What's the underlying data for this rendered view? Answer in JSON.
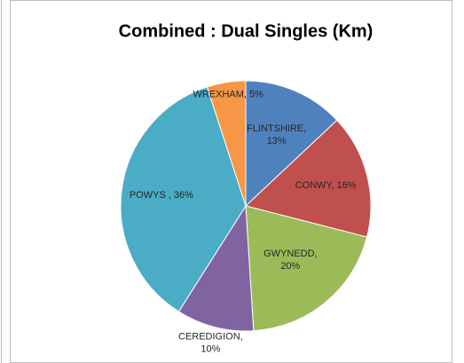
{
  "chart_data": {
    "type": "pie",
    "title": "Combined : Dual Singles (Km)",
    "categories": [
      "FLINTSHIRE,",
      "CONWY,",
      "GWYNEDD,",
      "CEREDIGION,",
      "POWYS ,",
      "WREXHAM,"
    ],
    "values": [
      13,
      16,
      20,
      10,
      36,
      5
    ],
    "value_labels": [
      "13%",
      "16%",
      "20%",
      "10%",
      "36%",
      "5%"
    ],
    "colors": [
      "#4F81BD",
      "#C0504D",
      "#9BBB59",
      "#8064A2",
      "#4BACC6",
      "#F79646"
    ]
  }
}
